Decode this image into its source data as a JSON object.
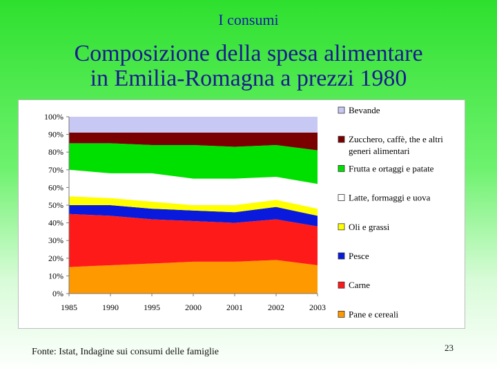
{
  "header": {
    "section": "I consumi"
  },
  "slide": {
    "title_line1": "Composizione della spesa alimentare",
    "title_line2": "in Emilia-Romagna a prezzi 1980"
  },
  "footer": {
    "source": "Fonte: Istat, Indagine sui consumi delle famiglie",
    "page": "23"
  },
  "chart_data": {
    "type": "area",
    "stacked": true,
    "percent": true,
    "categories": [
      "1985",
      "1990",
      "1995",
      "2000",
      "2001",
      "2002",
      "2003"
    ],
    "ylim": [
      0,
      100
    ],
    "yticks": [
      "0%",
      "10%",
      "20%",
      "30%",
      "40%",
      "50%",
      "60%",
      "70%",
      "80%",
      "90%",
      "100%"
    ],
    "legend_position": "right",
    "series": [
      {
        "name": "Pane e cereali",
        "color": "#ff9900",
        "values": [
          15,
          16,
          17,
          18,
          18,
          19,
          16
        ]
      },
      {
        "name": "Carne",
        "color": "#ff1a1a",
        "values": [
          30,
          28,
          25,
          23,
          22,
          23,
          22
        ]
      },
      {
        "name": "Pesce",
        "color": "#0a1adc",
        "values": [
          5,
          6,
          6,
          6,
          6,
          7,
          6
        ]
      },
      {
        "name": "Oli e grassi",
        "color": "#ffff00",
        "values": [
          5,
          4,
          4,
          3,
          4,
          4,
          4
        ]
      },
      {
        "name": "Latte, formaggi e uova",
        "color": "#ffffff",
        "values": [
          15,
          14,
          16,
          15,
          15,
          13,
          14
        ]
      },
      {
        "name": "Frutta e ortaggi e patate",
        "color": "#00e000",
        "values": [
          15,
          17,
          16,
          19,
          18,
          18,
          19
        ]
      },
      {
        "name": "Zucchero, caffè, the e altri generi alimentari",
        "color": "#7a0000",
        "values": [
          6,
          6,
          7,
          7,
          8,
          7,
          10
        ]
      },
      {
        "name": "Bevande",
        "color": "#c8c8f4",
        "values": [
          9,
          9,
          9,
          9,
          9,
          9,
          9
        ]
      }
    ]
  }
}
